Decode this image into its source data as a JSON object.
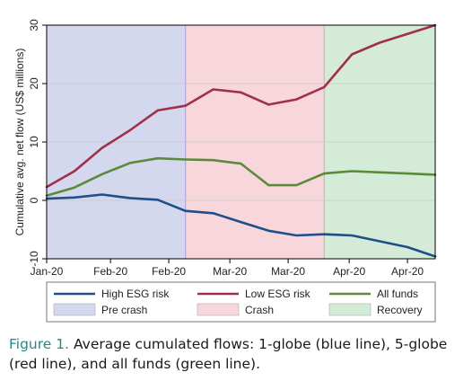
{
  "chart_data": {
    "type": "line",
    "title": "",
    "xlabel": "",
    "ylabel": "Cumulative avg. net flow (US$ millions)",
    "ylim": [
      -10,
      30
    ],
    "yticks": [
      -10,
      0,
      10,
      20,
      30
    ],
    "xlim": [
      0,
      14
    ],
    "xticks": [
      {
        "x": 0,
        "label": "Jan-20"
      },
      {
        "x": 2.3,
        "label": "Feb-20"
      },
      {
        "x": 4.4,
        "label": "Feb-20"
      },
      {
        "x": 6.6,
        "label": "Mar-20"
      },
      {
        "x": 8.7,
        "label": "Mar-20"
      },
      {
        "x": 10.9,
        "label": "Apr-20"
      },
      {
        "x": 13.0,
        "label": "Apr-20"
      }
    ],
    "x": [
      0,
      1,
      2,
      3,
      4,
      5,
      6,
      7,
      8,
      9,
      10,
      11,
      12,
      13,
      14
    ],
    "series": [
      {
        "name": "High ESG risk",
        "color": "#1f4e89",
        "values": [
          0.3,
          0.5,
          1.0,
          0.4,
          0.1,
          -1.8,
          -2.2,
          -3.7,
          -5.2,
          -6.0,
          -5.8,
          -6.0,
          -7.0,
          -8.0,
          -9.6
        ]
      },
      {
        "name": "Low ESG risk",
        "color": "#a0304a",
        "values": [
          2.3,
          5.0,
          9.0,
          12.0,
          15.4,
          16.2,
          19.0,
          18.5,
          16.4,
          17.3,
          19.4,
          25.0,
          27.0,
          28.5,
          30.0
        ]
      },
      {
        "name": "All funds",
        "color": "#5a8a3a",
        "values": [
          0.8,
          2.2,
          4.5,
          6.4,
          7.2,
          7.0,
          6.9,
          6.3,
          2.6,
          2.6,
          4.6,
          5.0,
          4.8,
          4.6,
          4.4
        ]
      }
    ],
    "regions": [
      {
        "name": "Pre crash",
        "from": 0,
        "to": 5,
        "color": "#d4d8ee"
      },
      {
        "name": "Crash",
        "from": 5,
        "to": 10,
        "color": "#f8d7dc"
      },
      {
        "name": "Recovery",
        "from": 10,
        "to": 14,
        "color": "#d3ebd7"
      }
    ],
    "grid": true,
    "legend": "bottom"
  },
  "caption": {
    "label": "Figure 1.",
    "text": " Average cumulated flows: 1-globe (blue line), 5-globe (red line), and all funds (green line)."
  }
}
